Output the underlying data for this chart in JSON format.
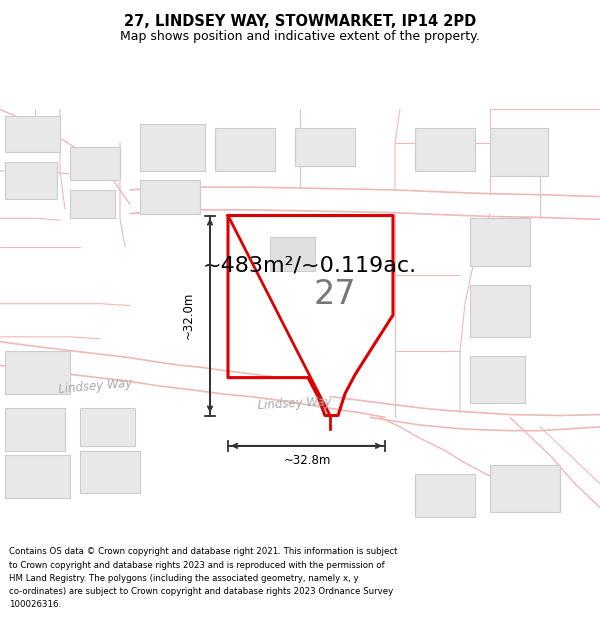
{
  "title_line1": "27, LINDSEY WAY, STOWMARKET, IP14 2PD",
  "title_line2": "Map shows position and indicative extent of the property.",
  "area_text": "~483m²/~0.119ac.",
  "label_27": "27",
  "dim_vertical": "~32.0m",
  "dim_horizontal": "~32.8m",
  "street_label": "Lindsey Way",
  "footer_text": "Contains OS data © Crown copyright and database right 2021. This information is subject to Crown copyright and database rights 2023 and is reproduced with the permission of HM Land Registry. The polygons (including the associated geometry, namely x, y co-ordinates) are subject to Crown copyright and database rights 2023 Ordnance Survey 100026316.",
  "bg_color": "#ffffff",
  "map_bg": "#ffffff",
  "plot_fill": "#ffffff",
  "plot_edge_color": "#dd0000",
  "road_color": "#f0b8b8",
  "building_fill": "#e8e8e8",
  "building_edge": "#cccccc",
  "parcel_edge": "#f0b8b8",
  "dimension_color": "#333333",
  "text_color": "#000000",
  "area_fontsize": 16,
  "label_fontsize": 24,
  "figsize": [
    6.0,
    6.25
  ],
  "dpi": 100
}
